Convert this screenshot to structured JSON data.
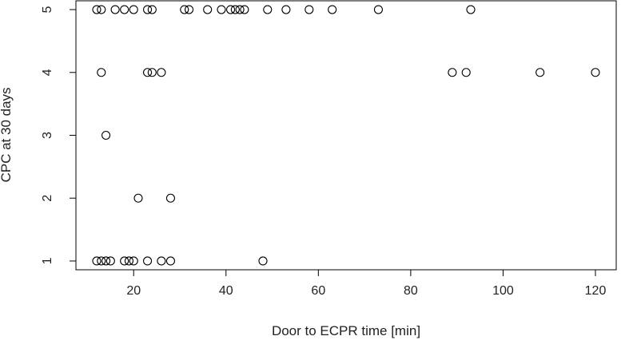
{
  "chart_data": {
    "type": "scatter",
    "title": "",
    "xlabel": "Door to ECPR time [min]",
    "ylabel": "CPC at 30 days",
    "xlim": [
      7.5,
      124.5
    ],
    "ylim": [
      0.86,
      5.14
    ],
    "xticks": [
      20,
      40,
      60,
      80,
      100,
      120
    ],
    "yticks": [
      1,
      2,
      3,
      4,
      5
    ],
    "grid": false,
    "legend": "none",
    "marker": "open-circle",
    "points": [
      {
        "x": 12,
        "y": 5
      },
      {
        "x": 13,
        "y": 5
      },
      {
        "x": 16,
        "y": 5
      },
      {
        "x": 18,
        "y": 5
      },
      {
        "x": 20,
        "y": 5
      },
      {
        "x": 23,
        "y": 5
      },
      {
        "x": 24,
        "y": 5
      },
      {
        "x": 31,
        "y": 5
      },
      {
        "x": 32,
        "y": 5
      },
      {
        "x": 36,
        "y": 5
      },
      {
        "x": 39,
        "y": 5
      },
      {
        "x": 41,
        "y": 5
      },
      {
        "x": 42,
        "y": 5
      },
      {
        "x": 43,
        "y": 5
      },
      {
        "x": 44,
        "y": 5
      },
      {
        "x": 49,
        "y": 5
      },
      {
        "x": 53,
        "y": 5
      },
      {
        "x": 58,
        "y": 5
      },
      {
        "x": 63,
        "y": 5
      },
      {
        "x": 73,
        "y": 5
      },
      {
        "x": 93,
        "y": 5
      },
      {
        "x": 13,
        "y": 4
      },
      {
        "x": 23,
        "y": 4
      },
      {
        "x": 24,
        "y": 4
      },
      {
        "x": 26,
        "y": 4
      },
      {
        "x": 89,
        "y": 4
      },
      {
        "x": 92,
        "y": 4
      },
      {
        "x": 108,
        "y": 4
      },
      {
        "x": 120,
        "y": 4
      },
      {
        "x": 14,
        "y": 3
      },
      {
        "x": 21,
        "y": 2
      },
      {
        "x": 28,
        "y": 2
      },
      {
        "x": 12,
        "y": 1
      },
      {
        "x": 13,
        "y": 1
      },
      {
        "x": 14,
        "y": 1
      },
      {
        "x": 15,
        "y": 1
      },
      {
        "x": 18,
        "y": 1
      },
      {
        "x": 19,
        "y": 1
      },
      {
        "x": 20,
        "y": 1
      },
      {
        "x": 23,
        "y": 1
      },
      {
        "x": 26,
        "y": 1
      },
      {
        "x": 28,
        "y": 1
      },
      {
        "x": 48,
        "y": 1
      }
    ]
  }
}
